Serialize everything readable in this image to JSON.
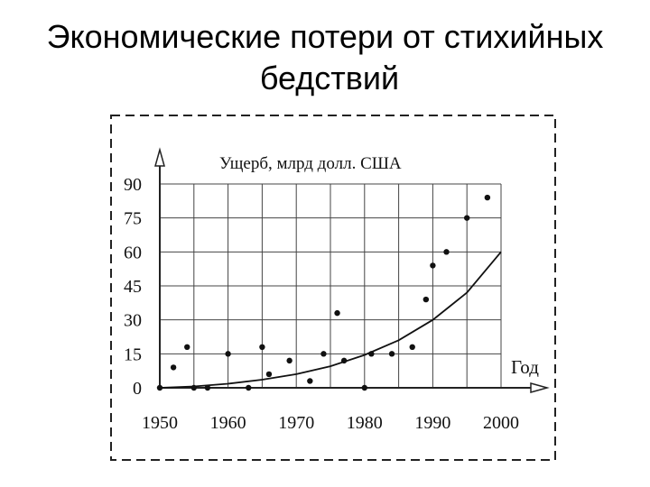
{
  "slide": {
    "title_line1": "Экономические потери от стихийных",
    "title_line2": "бедствий"
  },
  "chart_data": {
    "type": "scatter",
    "ylabel": "Ущерб, млрд долл. США",
    "xlabel": "Год",
    "x_ticks": [
      1950,
      1960,
      1970,
      1980,
      1990,
      2000
    ],
    "y_ticks": [
      0,
      15,
      30,
      45,
      60,
      75,
      90
    ],
    "xlim": [
      1950,
      2000
    ],
    "ylim": [
      0,
      90
    ],
    "grid": true,
    "points": [
      {
        "x": 1950,
        "y": 0
      },
      {
        "x": 1952,
        "y": 9
      },
      {
        "x": 1954,
        "y": 18
      },
      {
        "x": 1955,
        "y": 0
      },
      {
        "x": 1957,
        "y": 0
      },
      {
        "x": 1960,
        "y": 15
      },
      {
        "x": 1963,
        "y": 0
      },
      {
        "x": 1965,
        "y": 18
      },
      {
        "x": 1966,
        "y": 6
      },
      {
        "x": 1969,
        "y": 12
      },
      {
        "x": 1972,
        "y": 3
      },
      {
        "x": 1974,
        "y": 15
      },
      {
        "x": 1976,
        "y": 33
      },
      {
        "x": 1977,
        "y": 12
      },
      {
        "x": 1980,
        "y": 0
      },
      {
        "x": 1981,
        "y": 15
      },
      {
        "x": 1984,
        "y": 15
      },
      {
        "x": 1987,
        "y": 18
      },
      {
        "x": 1989,
        "y": 39
      },
      {
        "x": 1990,
        "y": 54
      },
      {
        "x": 1992,
        "y": 60
      },
      {
        "x": 1995,
        "y": 75
      },
      {
        "x": 1998,
        "y": 84
      }
    ],
    "trend": [
      {
        "x": 1950,
        "y": 0
      },
      {
        "x": 1955,
        "y": 0.6
      },
      {
        "x": 1960,
        "y": 1.8
      },
      {
        "x": 1965,
        "y": 3.6
      },
      {
        "x": 1970,
        "y": 6
      },
      {
        "x": 1975,
        "y": 9.5
      },
      {
        "x": 1980,
        "y": 14.5
      },
      {
        "x": 1985,
        "y": 21
      },
      {
        "x": 1990,
        "y": 30
      },
      {
        "x": 1995,
        "y": 42
      },
      {
        "x": 2000,
        "y": 60
      }
    ]
  }
}
